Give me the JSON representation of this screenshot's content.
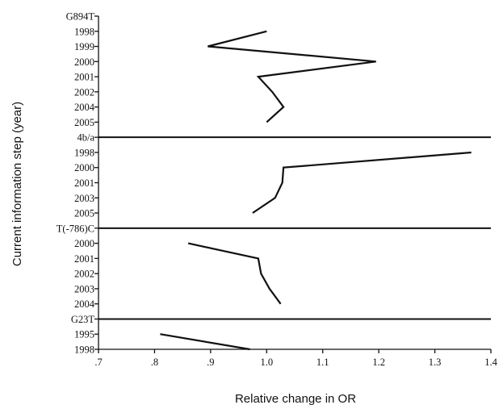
{
  "chart_data": {
    "type": "line",
    "orientation": "horizontal-value-axis",
    "xlabel": "Relative change in OR",
    "ylabel": "Current information step (year)",
    "xlim": [
      0.7,
      1.4
    ],
    "x_ticks": [
      ".7",
      ".8",
      ".9",
      "1.0",
      "1.1",
      "1.2",
      "1.3",
      "1.4"
    ],
    "x_tick_values": [
      0.7,
      0.8,
      0.9,
      1.0,
      1.1,
      1.2,
      1.3,
      1.4
    ],
    "grid": false,
    "legend": "none",
    "panels": [
      {
        "label": "G894T",
        "steps": [
          "1998",
          "1999",
          "2000",
          "2001",
          "2002",
          "2004",
          "2005"
        ],
        "values": [
          1.0,
          0.895,
          1.195,
          0.985,
          1.01,
          1.03,
          1.0
        ]
      },
      {
        "label": "4b/a",
        "steps": [
          "1998",
          "2000",
          "2001",
          "2003",
          "2005"
        ],
        "values": [
          1.365,
          1.03,
          1.028,
          1.015,
          0.975
        ]
      },
      {
        "label": "T(-786)C",
        "steps": [
          "2000",
          "2001",
          "2002",
          "2003",
          "2004"
        ],
        "values": [
          0.86,
          0.985,
          0.99,
          1.005,
          1.025
        ]
      },
      {
        "label": "G23T",
        "steps": [
          "1995",
          "1998"
        ],
        "values": [
          0.81,
          0.97
        ]
      }
    ]
  }
}
